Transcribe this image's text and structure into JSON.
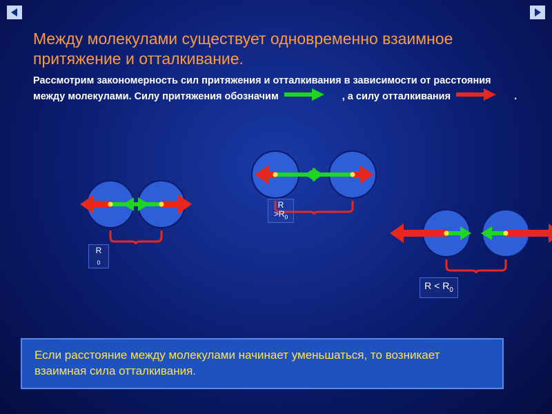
{
  "nav": {
    "prev_icon": "nav-prev-icon",
    "next_icon": "nav-next-icon"
  },
  "title": "Между молекулами существует одновременно взаимное притяжение и отталкивание.",
  "subtitle_part1": "Рассмотрим закономерность сил притяжения и отталкивания в зависимости от расстояния между молекулами. Силу притяжения обозначим ",
  "subtitle_part2": " , а силу отталкивания ",
  "subtitle_part3": " .",
  "colors": {
    "attraction": "#1fd61f",
    "repulsion": "#e8281f",
    "molecule_fill": "#2f5fd8",
    "molecule_stroke": "#0a1a6a",
    "center_dot": "#ffe44a",
    "bracket": "#e8281f",
    "nav_tri": "#0a2a8a"
  },
  "diagrams": {
    "equilibrium": {
      "gap": 6,
      "r": 34,
      "red_len": 24,
      "green_len": 40
    },
    "far": {
      "gap": 44,
      "r": 34,
      "red_len": 10,
      "green_len": 54
    },
    "close": {
      "gap": 18,
      "r": 34,
      "red_len": 62,
      "green_len": 20
    }
  },
  "labels": {
    "equilibrium_html": "R<br><sub>0</sub>",
    "far_html": "R<br>&gt;R<sub>0</sub>",
    "close_html": "R &lt; R<sub>0</sub>"
  },
  "overlay_text": "Если расстояние  между молекулами начинает\n уменьшаться, то возникает взаимная сила отталкивания."
}
